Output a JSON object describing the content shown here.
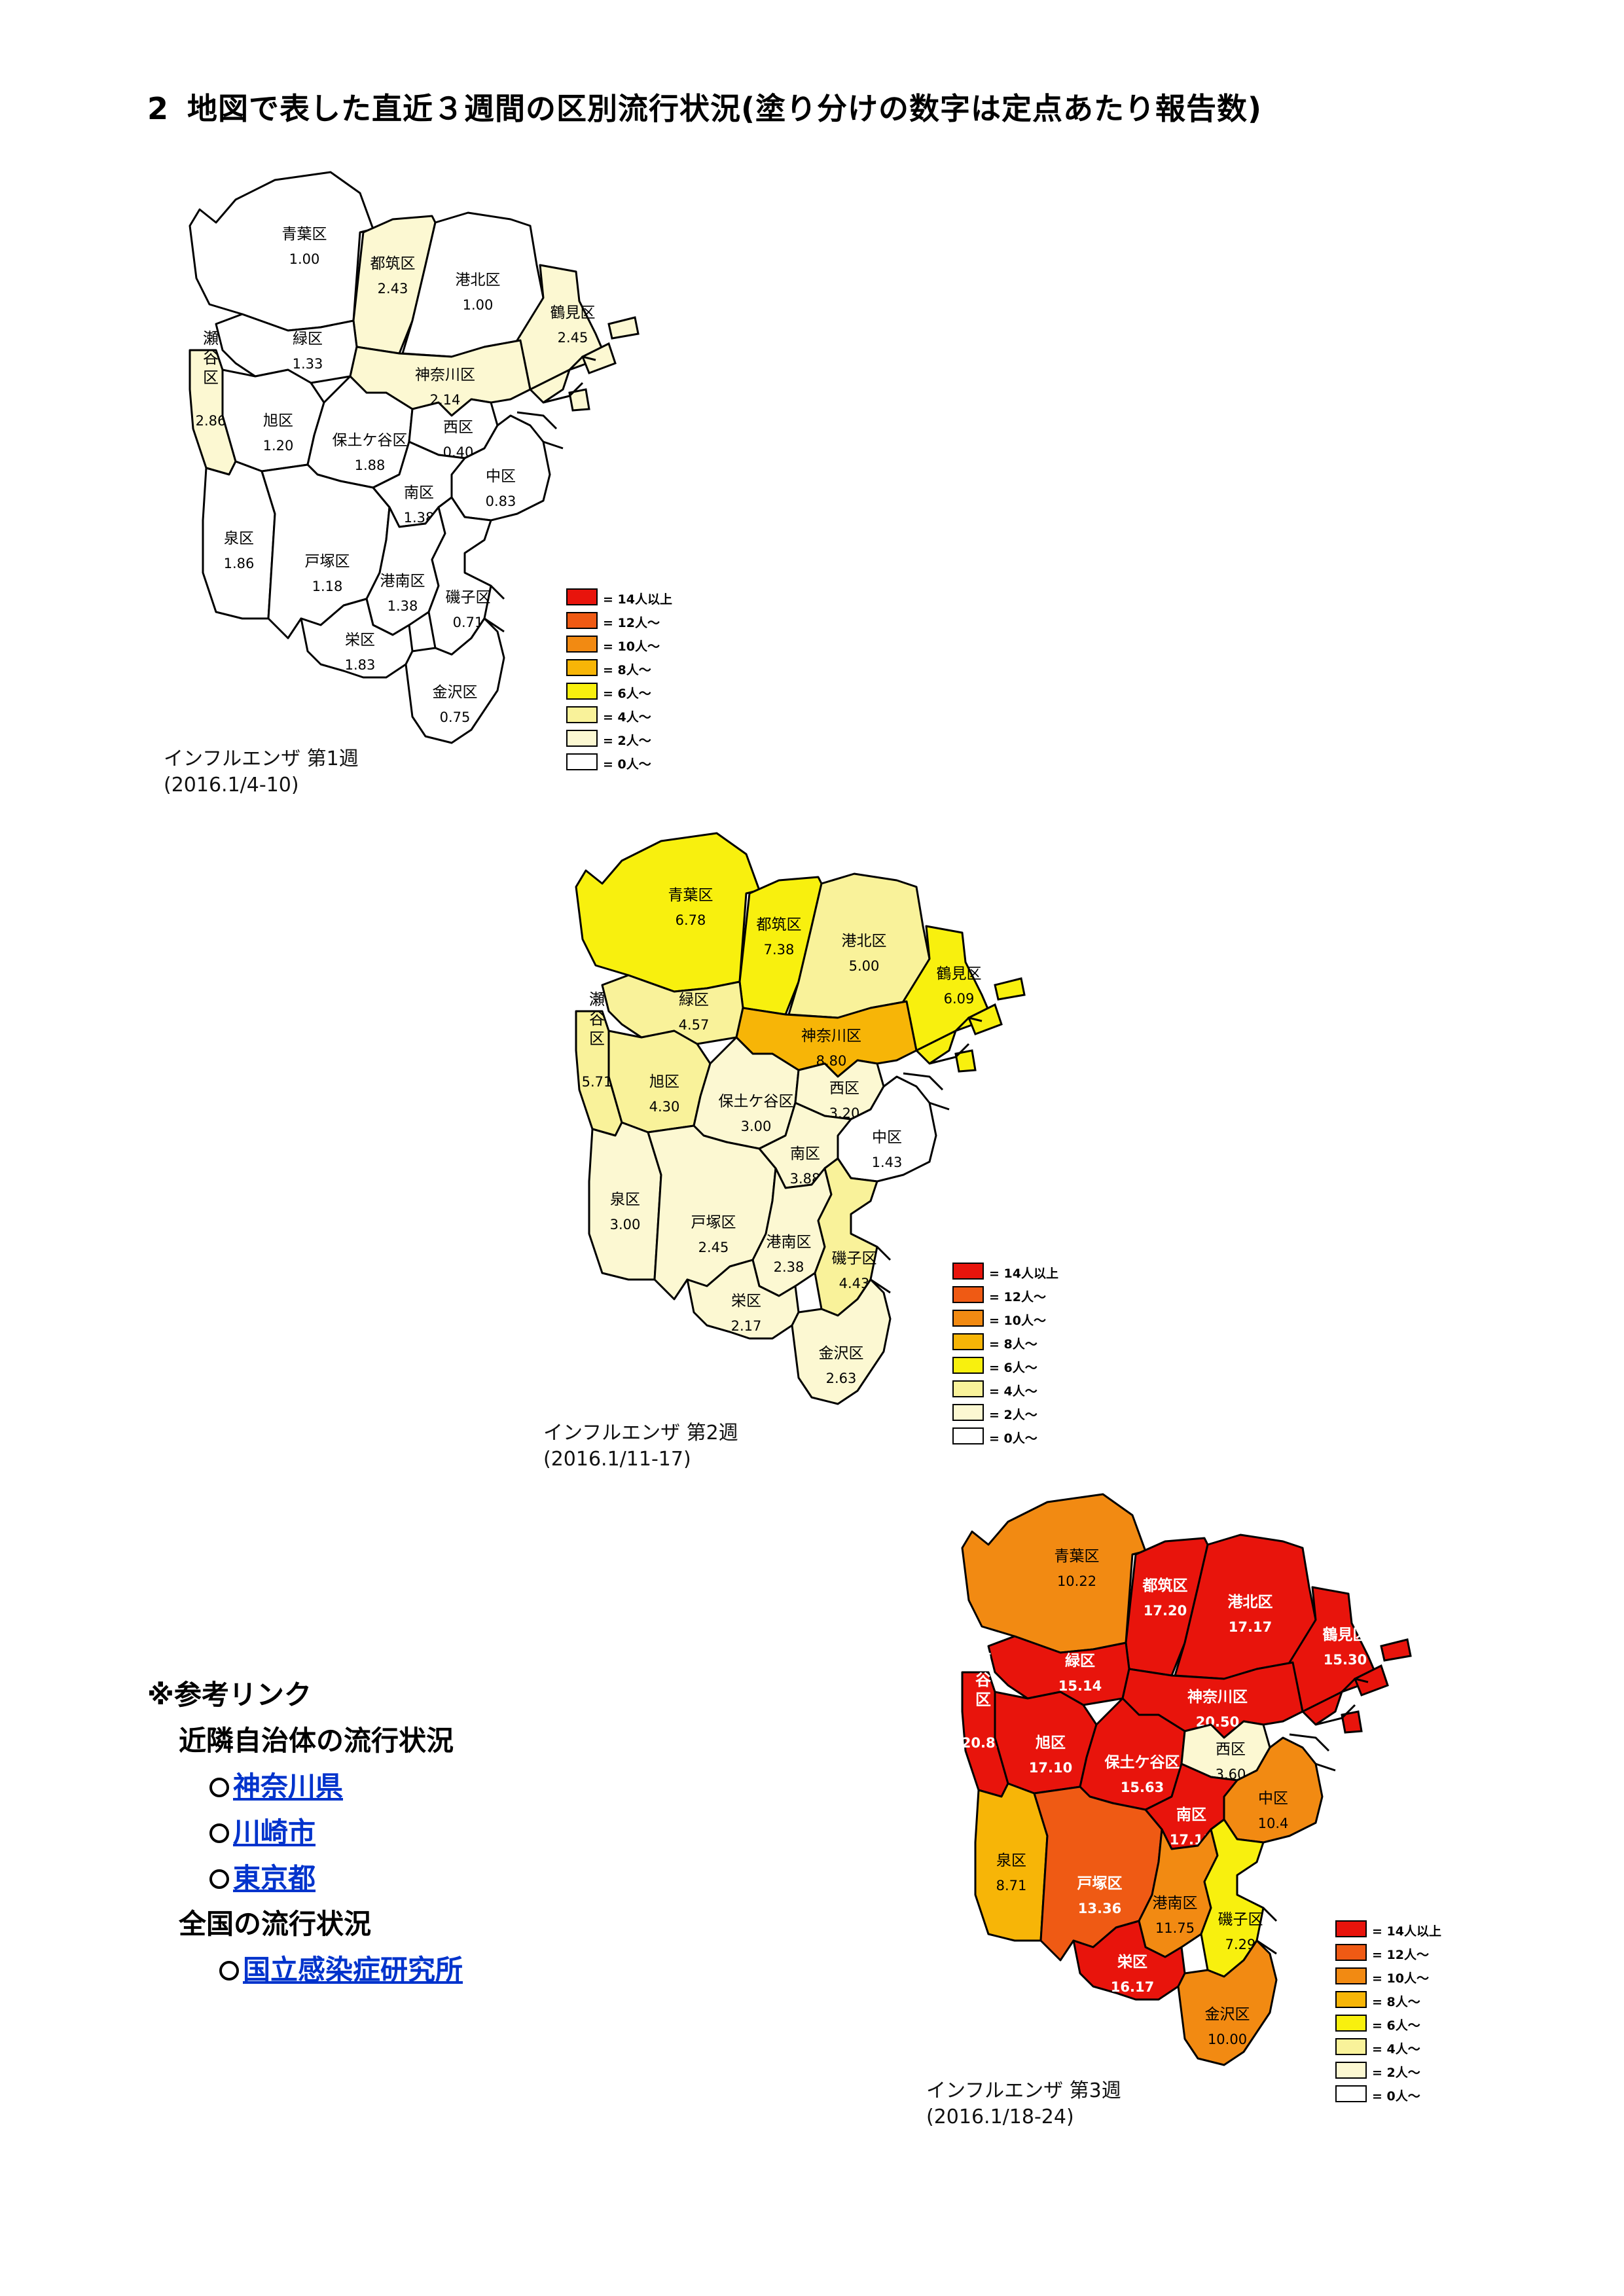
{
  "heading": {
    "number": "2",
    "text": "地図で表した直近３週間の区別流行状況(塗り分けの数字は定点あたり報告数)"
  },
  "legend": [
    {
      "label": "= 14人以上",
      "color": "#e8140c"
    },
    {
      "label": "= 12人～",
      "color": "#ef5a14"
    },
    {
      "label": "= 10人～",
      "color": "#f28a12"
    },
    {
      "label": "= 8人～",
      "color": "#f7b507"
    },
    {
      "label": "= 6人～",
      "color": "#f8f00e"
    },
    {
      "label": "= 4人～",
      "color": "#f9f29a"
    },
    {
      "label": "= 2人～",
      "color": "#fcf8d2"
    },
    {
      "label": "= 0人～",
      "color": "#ffffff"
    }
  ],
  "maps": [
    {
      "caption_line1": "インフルエンザ 第1週",
      "caption_line2": "(2016.1/4-10)",
      "districts": [
        {
          "id": "aoba",
          "name": "青葉区",
          "value": "1.00",
          "color": "#ffffff"
        },
        {
          "id": "tsuzuki",
          "name": "都筑区",
          "value": "2.43",
          "color": "#fcf8d2"
        },
        {
          "id": "kohoku",
          "name": "港北区",
          "value": "1.00",
          "color": "#ffffff"
        },
        {
          "id": "tsurumi",
          "name": "鶴見区",
          "value": "2.45",
          "color": "#fcf8d2"
        },
        {
          "id": "midori",
          "name": "緑区",
          "value": "1.33",
          "color": "#ffffff"
        },
        {
          "id": "seya",
          "name": "瀬谷区",
          "value": "2.86",
          "color": "#fcf8d2"
        },
        {
          "id": "asahi",
          "name": "旭区",
          "value": "1.20",
          "color": "#ffffff"
        },
        {
          "id": "kanagawa",
          "name": "神奈川区",
          "value": "2.14",
          "color": "#fcf8d2"
        },
        {
          "id": "hodogaya",
          "name": "保土ケ谷区",
          "value": "1.88",
          "color": "#ffffff"
        },
        {
          "id": "nishi",
          "name": "西区",
          "value": "0.40",
          "color": "#ffffff"
        },
        {
          "id": "naka",
          "name": "中区",
          "value": "0.83",
          "color": "#ffffff"
        },
        {
          "id": "izumi",
          "name": "泉区",
          "value": "1.86",
          "color": "#ffffff"
        },
        {
          "id": "totsuka",
          "name": "戸塚区",
          "value": "1.18",
          "color": "#ffffff"
        },
        {
          "id": "minami",
          "name": "南区",
          "value": "1.38",
          "color": "#ffffff"
        },
        {
          "id": "konan",
          "name": "港南区",
          "value": "1.38",
          "color": "#ffffff"
        },
        {
          "id": "isogo",
          "name": "磯子区",
          "value": "0.71",
          "color": "#ffffff"
        },
        {
          "id": "sakae",
          "name": "栄区",
          "value": "1.83",
          "color": "#ffffff"
        },
        {
          "id": "kanazawa",
          "name": "金沢区",
          "value": "0.75",
          "color": "#ffffff"
        }
      ]
    },
    {
      "caption_line1": "インフルエンザ 第2週",
      "caption_line2": "(2016.1/11-17)",
      "districts": [
        {
          "id": "aoba",
          "name": "青葉区",
          "value": "6.78",
          "color": "#f8f00e"
        },
        {
          "id": "tsuzuki",
          "name": "都筑区",
          "value": "7.38",
          "color": "#f8f00e"
        },
        {
          "id": "kohoku",
          "name": "港北区",
          "value": "5.00",
          "color": "#f9f29a"
        },
        {
          "id": "tsurumi",
          "name": "鶴見区",
          "value": "6.09",
          "color": "#f8f00e"
        },
        {
          "id": "midori",
          "name": "緑区",
          "value": "4.57",
          "color": "#f9f29a"
        },
        {
          "id": "seya",
          "name": "瀬谷区",
          "value": "5.71",
          "color": "#f9f29a"
        },
        {
          "id": "asahi",
          "name": "旭区",
          "value": "4.30",
          "color": "#f9f29a"
        },
        {
          "id": "kanagawa",
          "name": "神奈川区",
          "value": "8.80",
          "color": "#f7b507"
        },
        {
          "id": "hodogaya",
          "name": "保土ケ谷区",
          "value": "3.00",
          "color": "#fcf8d2"
        },
        {
          "id": "nishi",
          "name": "西区",
          "value": "3.20",
          "color": "#fcf8d2"
        },
        {
          "id": "naka",
          "name": "中区",
          "value": "1.43",
          "color": "#ffffff"
        },
        {
          "id": "izumi",
          "name": "泉区",
          "value": "3.00",
          "color": "#fcf8d2"
        },
        {
          "id": "totsuka",
          "name": "戸塚区",
          "value": "2.45",
          "color": "#fcf8d2"
        },
        {
          "id": "minami",
          "name": "南区",
          "value": "3.88",
          "color": "#fcf8d2"
        },
        {
          "id": "konan",
          "name": "港南区",
          "value": "2.38",
          "color": "#fcf8d2"
        },
        {
          "id": "isogo",
          "name": "磯子区",
          "value": "4.43",
          "color": "#f9f29a"
        },
        {
          "id": "sakae",
          "name": "栄区",
          "value": "2.17",
          "color": "#fcf8d2"
        },
        {
          "id": "kanazawa",
          "name": "金沢区",
          "value": "2.63",
          "color": "#fcf8d2"
        }
      ]
    },
    {
      "caption_line1": "インフルエンザ 第3週",
      "caption_line2": "(2016.1/18-24)",
      "districts": [
        {
          "id": "aoba",
          "name": "青葉区",
          "value": "10.22",
          "color": "#f28a12"
        },
        {
          "id": "tsuzuki",
          "name": "都筑区",
          "value": "17.20",
          "color": "#e8140c"
        },
        {
          "id": "kohoku",
          "name": "港北区",
          "value": "17.17",
          "color": "#e8140c"
        },
        {
          "id": "tsurumi",
          "name": "鶴見区",
          "value": "15.30",
          "color": "#e8140c"
        },
        {
          "id": "midori",
          "name": "緑区",
          "value": "15.14",
          "color": "#e8140c"
        },
        {
          "id": "seya",
          "name": "瀬谷区",
          "value": "20.83",
          "color": "#e8140c"
        },
        {
          "id": "asahi",
          "name": "旭区",
          "value": "17.10",
          "color": "#e8140c"
        },
        {
          "id": "kanagawa",
          "name": "神奈川区",
          "value": "20.50",
          "color": "#e8140c"
        },
        {
          "id": "hodogaya",
          "name": "保土ケ谷区",
          "value": "15.63",
          "color": "#e8140c"
        },
        {
          "id": "nishi",
          "name": "西区",
          "value": "3.60",
          "color": "#fcf8d2"
        },
        {
          "id": "naka",
          "name": "中区",
          "value": "10.4",
          "color": "#f28a12"
        },
        {
          "id": "izumi",
          "name": "泉区",
          "value": "8.71",
          "color": "#f7b507"
        },
        {
          "id": "totsuka",
          "name": "戸塚区",
          "value": "13.36",
          "color": "#ef5a14"
        },
        {
          "id": "minami",
          "name": "南区",
          "value": "17.13",
          "color": "#e8140c"
        },
        {
          "id": "konan",
          "name": "港南区",
          "value": "11.75",
          "color": "#f28a12"
        },
        {
          "id": "isogo",
          "name": "磯子区",
          "value": "7.29",
          "color": "#f8f00e"
        },
        {
          "id": "sakae",
          "name": "栄区",
          "value": "16.17",
          "color": "#e8140c"
        },
        {
          "id": "kanazawa",
          "name": "金沢区",
          "value": "10.00",
          "color": "#f28a12"
        }
      ]
    }
  ],
  "links": {
    "title": "※参考リンク",
    "neighbors_label": "近隣自治体の流行状況",
    "kanagawa": "神奈川県",
    "kawasaki": "川崎市",
    "tokyo": "東京都",
    "national_label": "全国の流行状況",
    "niid": "国立感染症研究所"
  }
}
